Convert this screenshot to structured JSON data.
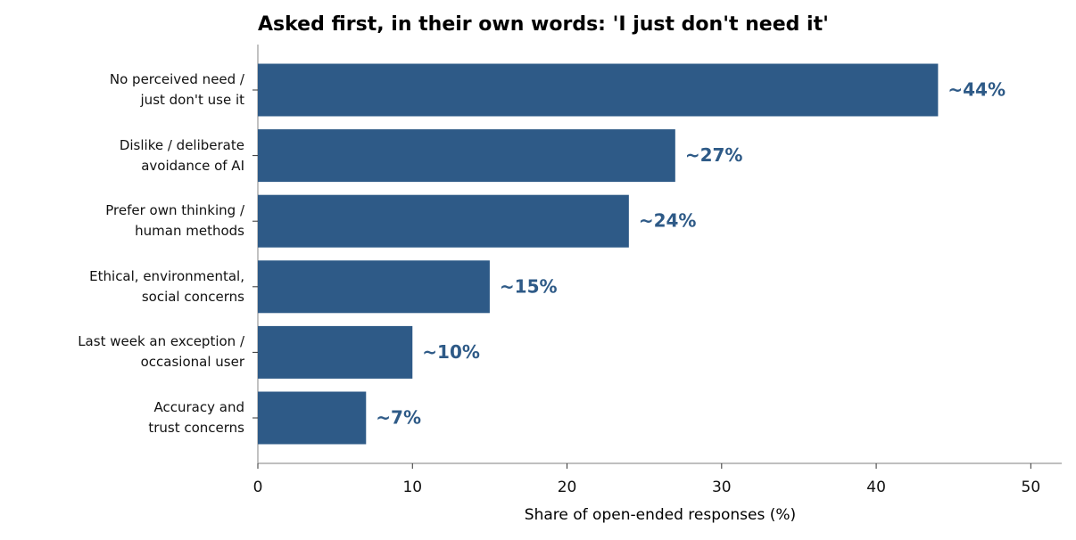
{
  "chart_data": {
    "type": "hbar",
    "title": "Asked first, in their own words: 'I just don't need it'",
    "x_label": "Share of open-ended responses (%)",
    "categories": [
      "No perceived need /\njust don't use it",
      "Dislike / deliberate\navoidance of AI",
      "Prefer own thinking /\nhuman methods",
      "Ethical, environmental,\nsocial concerns",
      "Last week an exception /\noccasional user",
      "Accuracy and\ntrust concerns"
    ],
    "values": [
      44,
      27,
      24,
      15,
      10,
      7
    ],
    "value_labels": [
      "~44%",
      "~27%",
      "~24%",
      "~15%",
      "~10%",
      "~7%"
    ],
    "color": "#2e5a87",
    "xlim": [
      0,
      52
    ],
    "xticks": [
      0,
      10,
      20,
      30,
      40,
      50
    ],
    "grid": false
  }
}
